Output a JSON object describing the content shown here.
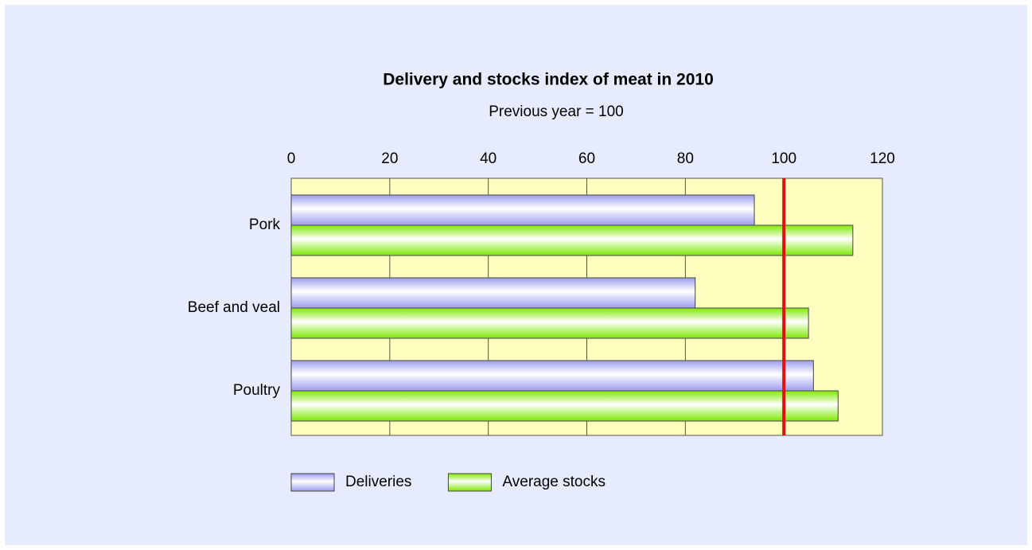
{
  "chart_data": {
    "type": "barh",
    "title": "Delivery and stocks index of meat in 2010",
    "subtitle": "Previous year = 100",
    "categories": [
      "Pork",
      "Beef and veal",
      "Poultry"
    ],
    "series": [
      {
        "name": "Deliveries",
        "color": "#9c9cf0",
        "values": [
          94,
          82,
          106
        ]
      },
      {
        "name": "Average stocks",
        "color": "#7ee800",
        "values": [
          114,
          105,
          111
        ]
      }
    ],
    "xlim": [
      0,
      120
    ],
    "xticks": [
      0,
      20,
      40,
      60,
      80,
      100,
      120
    ],
    "reference_line": 100,
    "reference_color": "#e01010",
    "grid": true,
    "legend": "bottom"
  }
}
